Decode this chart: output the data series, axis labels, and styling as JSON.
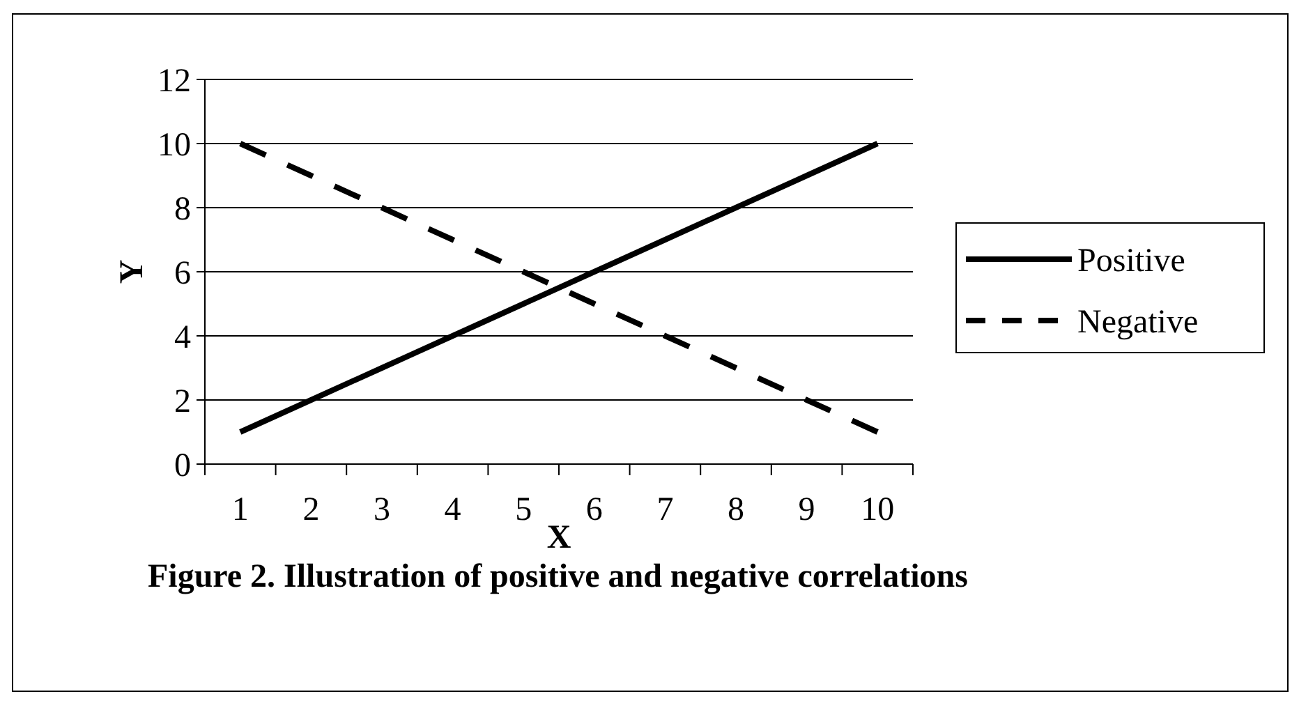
{
  "chart_data": {
    "type": "line",
    "xlabel": "X",
    "ylabel": "Y",
    "categories": [
      "1",
      "2",
      "3",
      "4",
      "5",
      "6",
      "7",
      "8",
      "9",
      "10"
    ],
    "series": [
      {
        "name": "Positive",
        "color": "#000000",
        "line_style": "solid",
        "values": [
          1,
          2,
          3,
          4,
          5,
          6,
          7,
          8,
          9,
          10
        ]
      },
      {
        "name": "Negative",
        "color": "#000000",
        "line_style": "dashed",
        "values": [
          10,
          9,
          8,
          7,
          6,
          5,
          4,
          3,
          2,
          1
        ]
      }
    ],
    "ylim": [
      0,
      12
    ],
    "yticks": [
      0,
      2,
      4,
      6,
      8,
      10,
      12
    ],
    "grid": "y",
    "legend": "right",
    "marker": "none",
    "annotations": [
      "Figure 2. Illustration of positive and negative correlations"
    ]
  }
}
